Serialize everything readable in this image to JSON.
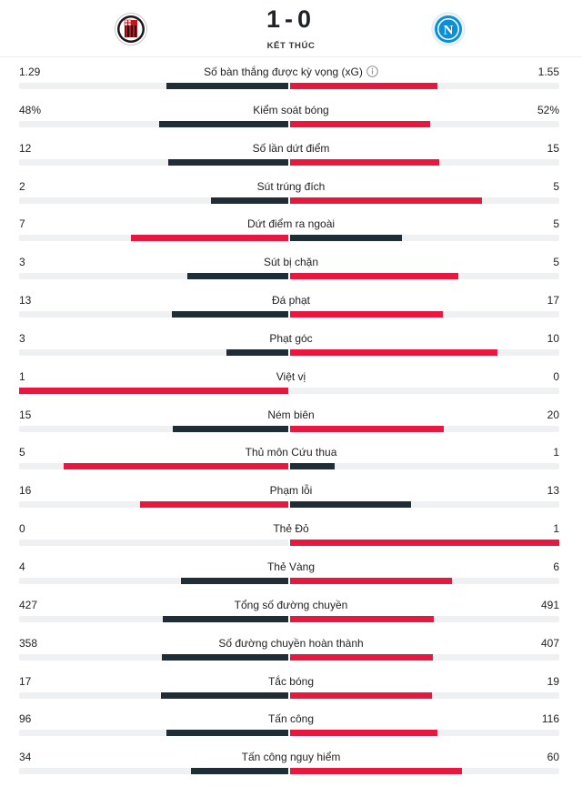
{
  "match": {
    "score": "1-0",
    "status": "KẾT THÚC",
    "home_team": "AC Milan",
    "away_team": "Napoli"
  },
  "colors": {
    "dark": "#1f2d36",
    "red": "#e8173f",
    "track": "#eef0f2"
  },
  "stats": [
    {
      "label": "Số bàn thắng được kỳ vọng (xG)",
      "home": "1.29",
      "away": "1.55",
      "home_value": 1.29,
      "away_value": 1.55,
      "info_icon": "info-icon"
    },
    {
      "label": "Kiểm soát bóng",
      "home": "48%",
      "away": "52%",
      "home_value": 48,
      "away_value": 52
    },
    {
      "label": "Số lần dứt điểm",
      "home": "12",
      "away": "15",
      "home_value": 12,
      "away_value": 15
    },
    {
      "label": "Sút trúng đích",
      "home": "2",
      "away": "5",
      "home_value": 2,
      "away_value": 5
    },
    {
      "label": "Dứt điểm ra ngoài",
      "home": "7",
      "away": "5",
      "home_value": 7,
      "away_value": 5
    },
    {
      "label": "Sút bị chặn",
      "home": "3",
      "away": "5",
      "home_value": 3,
      "away_value": 5
    },
    {
      "label": "Đá phạt",
      "home": "13",
      "away": "17",
      "home_value": 13,
      "away_value": 17
    },
    {
      "label": "Phạt góc",
      "home": "3",
      "away": "10",
      "home_value": 3,
      "away_value": 10
    },
    {
      "label": "Việt vị",
      "home": "1",
      "away": "0",
      "home_value": 1,
      "away_value": 0
    },
    {
      "label": "Ném biên",
      "home": "15",
      "away": "20",
      "home_value": 15,
      "away_value": 20
    },
    {
      "label": "Thủ môn Cứu thua",
      "home": "5",
      "away": "1",
      "home_value": 5,
      "away_value": 1
    },
    {
      "label": "Phạm lỗi",
      "home": "16",
      "away": "13",
      "home_value": 16,
      "away_value": 13
    },
    {
      "label": "Thẻ Đỏ",
      "home": "0",
      "away": "1",
      "home_value": 0,
      "away_value": 1
    },
    {
      "label": "Thẻ Vàng",
      "home": "4",
      "away": "6",
      "home_value": 4,
      "away_value": 6
    },
    {
      "label": "Tổng số đường chuyền",
      "home": "427",
      "away": "491",
      "home_value": 427,
      "away_value": 491
    },
    {
      "label": "Số đường chuyền hoàn thành",
      "home": "358",
      "away": "407",
      "home_value": 358,
      "away_value": 407
    },
    {
      "label": "Tắc bóng",
      "home": "17",
      "away": "19",
      "home_value": 17,
      "away_value": 19
    },
    {
      "label": "Tấn công",
      "home": "96",
      "away": "116",
      "home_value": 96,
      "away_value": 116
    },
    {
      "label": "Tấn công nguy hiểm",
      "home": "34",
      "away": "60",
      "home_value": 34,
      "away_value": 60
    }
  ]
}
